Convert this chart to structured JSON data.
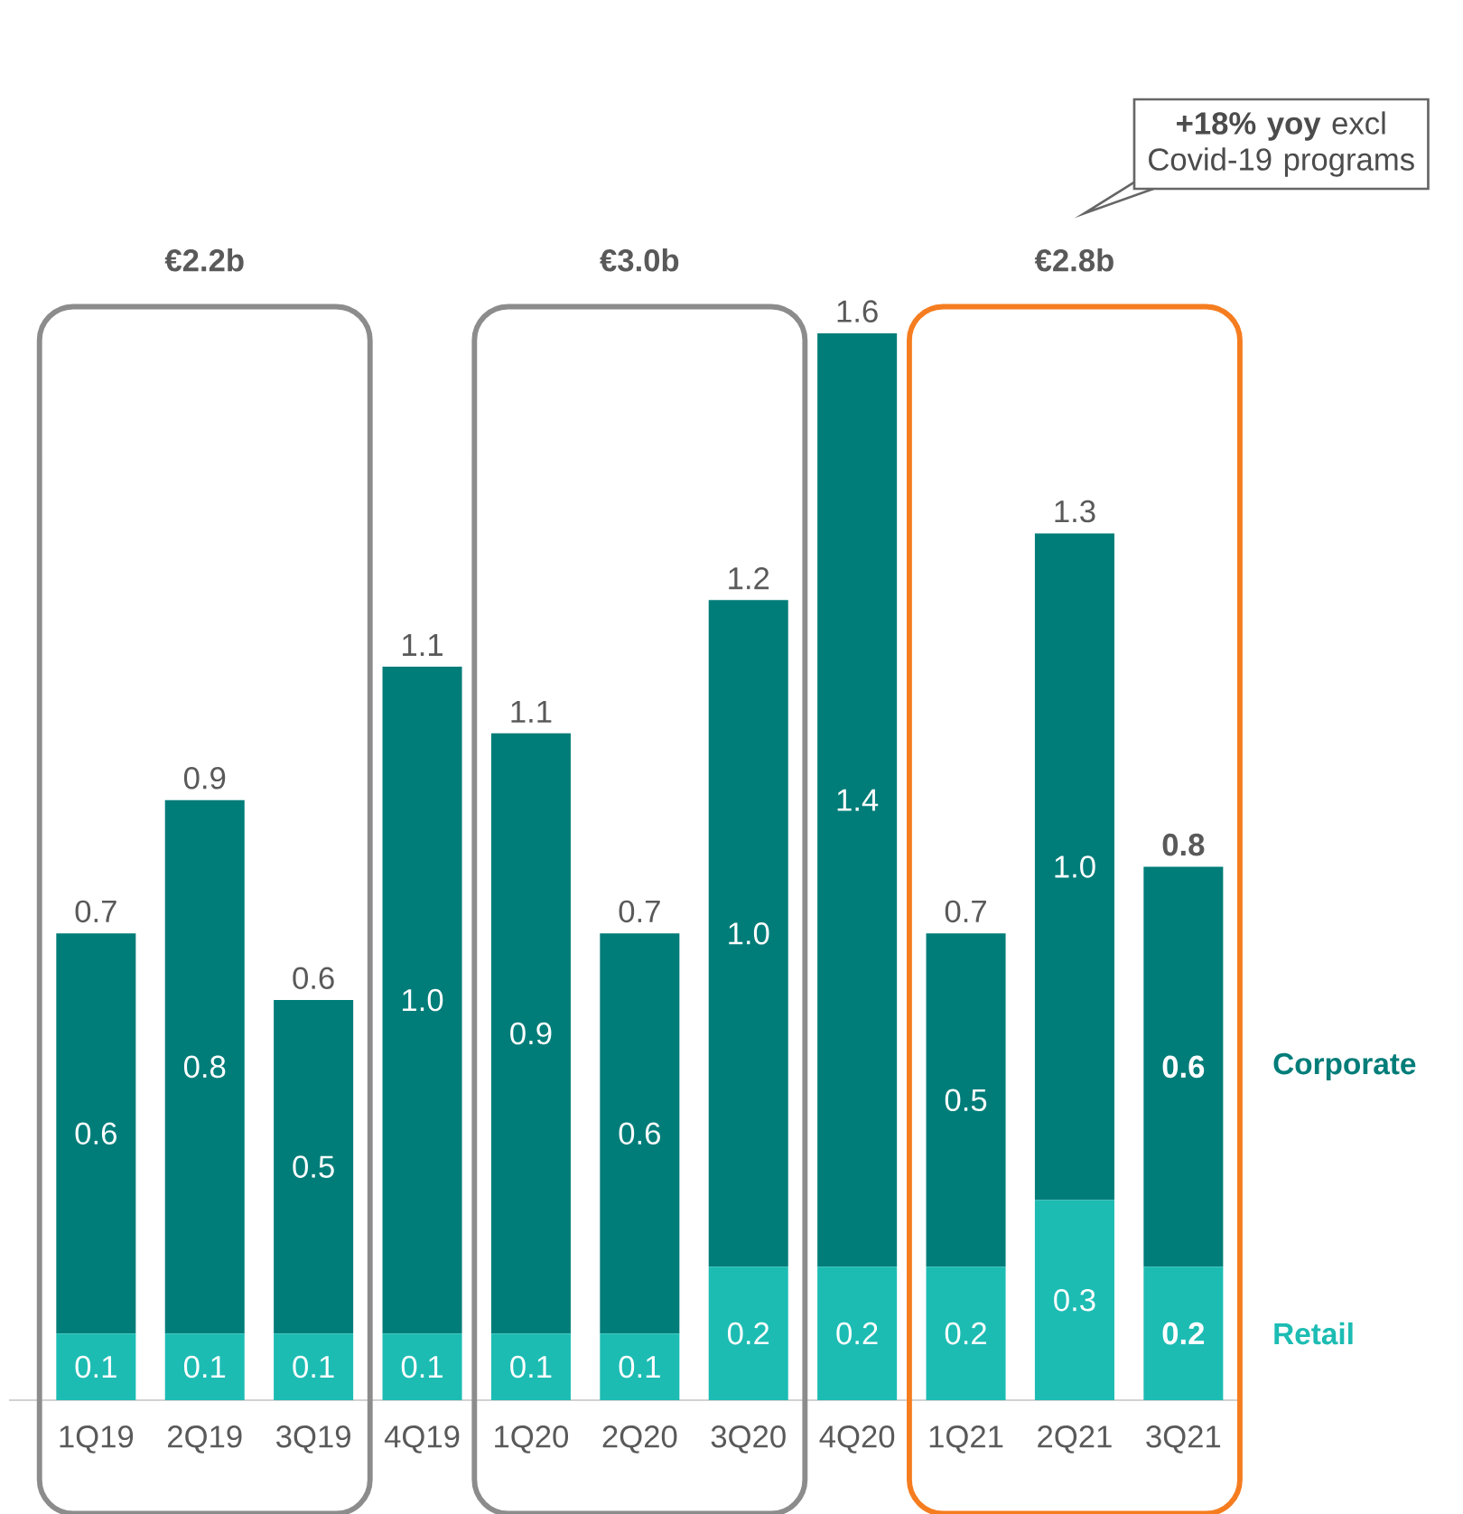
{
  "chart_data": {
    "type": "bar",
    "stacked": true,
    "tick_labels": "x",
    "legend": "right",
    "categories": [
      "1Q19",
      "2Q19",
      "3Q19",
      "4Q19",
      "1Q20",
      "2Q20",
      "3Q20",
      "4Q20",
      "1Q21",
      "2Q21",
      "3Q21"
    ],
    "series": [
      {
        "name": "Retail",
        "color": "#1cbcb3",
        "values": [
          0.1,
          0.1,
          0.1,
          0.1,
          0.1,
          0.1,
          0.2,
          0.2,
          0.2,
          0.3,
          0.2
        ],
        "value_labels": [
          "0.1",
          "0.1",
          "0.1",
          "0.1",
          "0.1",
          "0.1",
          "0.2",
          "0.2",
          "0.2",
          "0.3",
          "0.2"
        ]
      },
      {
        "name": "Corporate",
        "color": "#007d79",
        "values": [
          0.6,
          0.8,
          0.5,
          1.0,
          0.9,
          0.6,
          1.0,
          1.4,
          0.5,
          1.0,
          0.6
        ],
        "value_labels": [
          "0.6",
          "0.8",
          "0.5",
          "1.0",
          "0.9",
          "0.6",
          "1.0",
          "1.4",
          "0.5",
          "1.0",
          "0.6"
        ]
      }
    ],
    "totals": [
      "0.7",
      "0.9",
      "0.6",
      "1.1",
      "1.1",
      "0.7",
      "1.2",
      "1.6",
      "0.7",
      "1.3",
      "0.8"
    ],
    "annotations": [
      "€2.2b",
      "€3.0b",
      "€2.8b",
      "**+18% yoy** excl Covid-19 programs"
    ]
  }
}
